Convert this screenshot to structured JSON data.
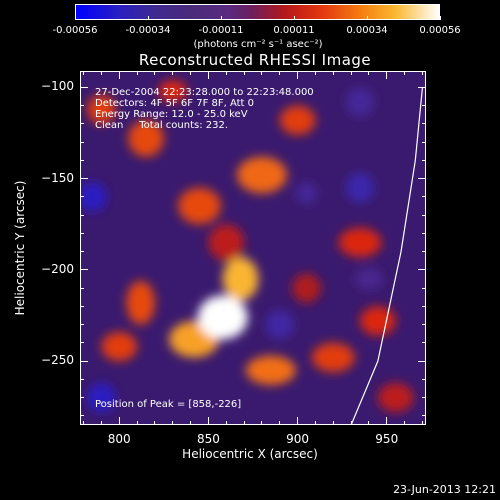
{
  "colorbar": {
    "ticks": [
      "-0.00056",
      "-0.00034",
      "-0.00011",
      "0.00011",
      "0.00034",
      "0.00056"
    ],
    "unit": "(photons cm⁻² s⁻¹ asec⁻²)"
  },
  "title": "Reconstructed RHESSI Image",
  "info": {
    "line1": "27-Dec-2004 22:23:28.000 to 22:23:48.000",
    "line2": "Detectors: 4F 5F 6F 7F 8F, Att 0",
    "line3": "Energy Range: 12.0 - 25.0 keV",
    "line4": "Clean     Total counts: 232."
  },
  "peak_text": "Position of Peak = [858,-226]",
  "xlabel": "Heliocentric X (arcsec)",
  "ylabel": "Heliocentric Y (arcsec)",
  "timestamp": "23-Jun-2013 12:21",
  "chart_data": {
    "type": "heatmap",
    "title": "Reconstructed RHESSI Image",
    "xlabel": "Heliocentric X (arcsec)",
    "ylabel": "Heliocentric Y (arcsec)",
    "xlim": [
      778,
      972
    ],
    "ylim": [
      -285,
      -91
    ],
    "xticks": [
      800,
      850,
      900,
      950
    ],
    "yticks": [
      -100,
      -150,
      -200,
      -250
    ],
    "color_range": [
      -0.00056,
      0.00056
    ],
    "colormap": "blue-purple-red-yellow-white",
    "peak": {
      "x": 858,
      "y": -226
    },
    "limb_curve": [
      [
        930,
        -285
      ],
      [
        945,
        -250
      ],
      [
        958,
        -190
      ],
      [
        966,
        -140
      ],
      [
        970,
        -100
      ]
    ],
    "blobs": [
      {
        "x": 858,
        "y": -226,
        "value": 0.00056,
        "rx": 14,
        "ry": 12
      },
      {
        "x": 868,
        "y": -205,
        "value": 0.00045,
        "rx": 10,
        "ry": 12
      },
      {
        "x": 842,
        "y": -238,
        "value": 0.00042,
        "rx": 14,
        "ry": 10
      },
      {
        "x": 845,
        "y": -165,
        "value": 0.0003,
        "rx": 12,
        "ry": 10
      },
      {
        "x": 880,
        "y": -148,
        "value": 0.00034,
        "rx": 14,
        "ry": 10
      },
      {
        "x": 900,
        "y": -118,
        "value": 0.00028,
        "rx": 10,
        "ry": 8
      },
      {
        "x": 815,
        "y": -128,
        "value": 0.0003,
        "rx": 10,
        "ry": 10
      },
      {
        "x": 790,
        "y": -112,
        "value": 0.00028,
        "rx": 8,
        "ry": 8
      },
      {
        "x": 830,
        "y": -102,
        "value": 0.00025,
        "rx": 8,
        "ry": 6
      },
      {
        "x": 812,
        "y": -218,
        "value": 0.0003,
        "rx": 8,
        "ry": 12
      },
      {
        "x": 800,
        "y": -242,
        "value": 0.00028,
        "rx": 10,
        "ry": 8
      },
      {
        "x": 885,
        "y": -255,
        "value": 0.00035,
        "rx": 14,
        "ry": 8
      },
      {
        "x": 920,
        "y": -248,
        "value": 0.00028,
        "rx": 12,
        "ry": 8
      },
      {
        "x": 935,
        "y": -185,
        "value": 0.00025,
        "rx": 12,
        "ry": 8
      },
      {
        "x": 945,
        "y": -228,
        "value": 0.00025,
        "rx": 10,
        "ry": 8
      },
      {
        "x": 955,
        "y": -270,
        "value": 0.0002,
        "rx": 10,
        "ry": 8
      },
      {
        "x": 905,
        "y": -210,
        "value": 0.00018,
        "rx": 8,
        "ry": 8
      },
      {
        "x": 860,
        "y": -185,
        "value": 0.0002,
        "rx": 10,
        "ry": 10
      },
      {
        "x": 785,
        "y": -160,
        "value": -0.0004,
        "rx": 8,
        "ry": 8
      },
      {
        "x": 790,
        "y": -270,
        "value": -0.0004,
        "rx": 8,
        "ry": 8
      },
      {
        "x": 935,
        "y": -155,
        "value": -0.00034,
        "rx": 8,
        "ry": 8
      },
      {
        "x": 905,
        "y": -158,
        "value": -0.00025,
        "rx": 6,
        "ry": 6
      },
      {
        "x": 890,
        "y": -230,
        "value": -0.0003,
        "rx": 8,
        "ry": 8
      },
      {
        "x": 935,
        "y": -108,
        "value": -0.00025,
        "rx": 8,
        "ry": 8
      },
      {
        "x": 940,
        "y": -205,
        "value": -0.0002,
        "rx": 8,
        "ry": 6
      }
    ]
  }
}
